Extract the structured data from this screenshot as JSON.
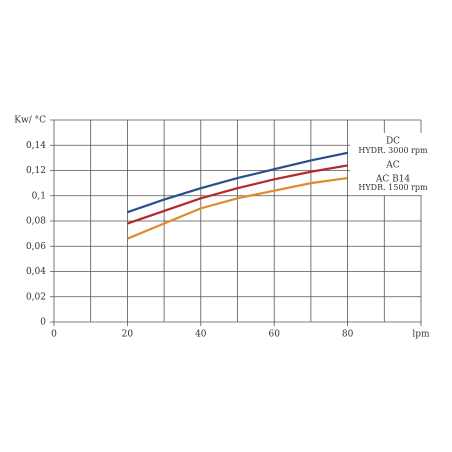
{
  "chart_data": {
    "type": "line",
    "x": [
      20,
      30,
      40,
      50,
      60,
      70,
      80
    ],
    "series": [
      {
        "name": "DC",
        "color": "#2a4f8f",
        "values": [
          0.087,
          0.097,
          0.106,
          0.114,
          0.121,
          0.128,
          0.134
        ],
        "note": "HYDR. 3000 rpm"
      },
      {
        "name": "AC",
        "color": "#b5282e",
        "values": [
          0.078,
          0.088,
          0.098,
          0.106,
          0.113,
          0.119,
          0.124
        ]
      },
      {
        "name": "AC B14",
        "color": "#e08a2c",
        "values": [
          0.066,
          0.078,
          0.09,
          0.098,
          0.104,
          0.11,
          0.114
        ],
        "note": "HYDR. 1500 rpm"
      }
    ],
    "xlim": [
      0,
      100
    ],
    "xticks": [
      0,
      20,
      40,
      60,
      80,
      {
        "value": 100,
        "label": "lpm"
      }
    ],
    "xminor": [
      10,
      30,
      50,
      70,
      90
    ],
    "ylim": [
      0,
      0.16
    ],
    "yticks": [
      {
        "value": 0,
        "label": "0"
      },
      {
        "value": 0.02,
        "label": "0,02"
      },
      {
        "value": 0.04,
        "label": "0,04"
      },
      {
        "value": 0.06,
        "label": "0,06"
      },
      {
        "value": 0.08,
        "label": "0,08"
      },
      {
        "value": 0.1,
        "label": "0,1"
      },
      {
        "value": 0.12,
        "label": "0,12"
      },
      {
        "value": 0.14,
        "label": "0,14"
      },
      {
        "value": 0.16,
        "label": "Kw/ °C"
      }
    ],
    "grid": true
  }
}
